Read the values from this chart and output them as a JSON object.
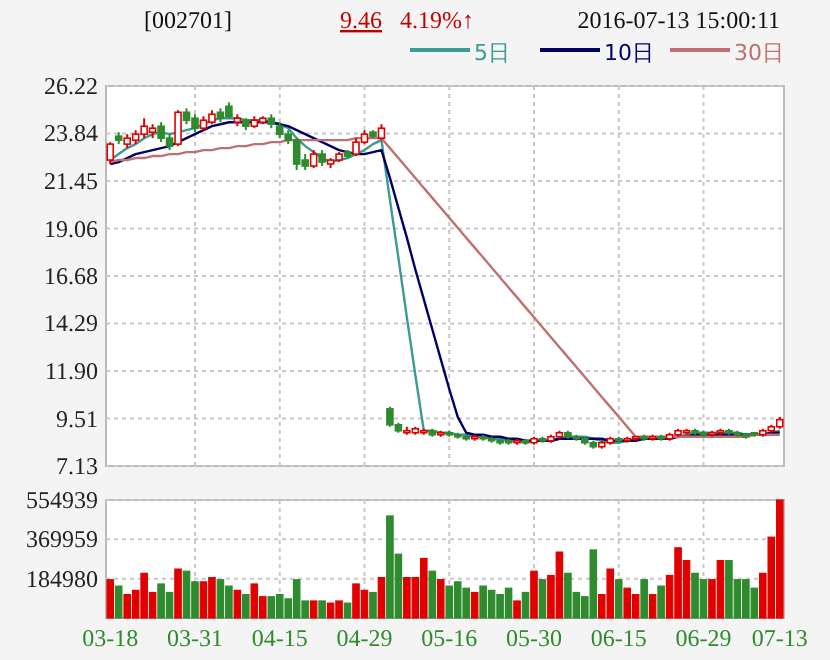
{
  "chart_data": [
    {
      "type": "candlestick",
      "annotations": [
        "[002701]",
        "9.46",
        "4.19%↑",
        "2016-07-13 15:00:11"
      ],
      "colors": [
        "#e00000",
        "#2e8b2e",
        "#e00000",
        "#e00000",
        "#e00000",
        "#e00000",
        "#2e8b2e",
        "#2e8b2e",
        "#e00000",
        "#2e8b2e",
        "#2e8b2e",
        "#e00000",
        "#e00000",
        "#2e8b2e",
        "#2e8b2e",
        "#e00000",
        "#2e8b2e",
        "#e00000",
        "#e00000",
        "#2e8b2e",
        "#2e8b2e",
        "#2e8b2e",
        "#2e8b2e",
        "#2e8b2e",
        "#e00000",
        "#2e8b2e",
        "#e00000",
        "#e00000",
        "#2e8b2e",
        "#e00000",
        "#e00000",
        "#2e8b2e",
        "#e00000",
        "#2e8b2e",
        "#2e8b2e",
        "#e00000",
        "#e00000",
        "#e00000",
        "#2e8b2e",
        "#e00000",
        "#2e8b2e",
        "#2e8b2e",
        "#2e8b2e",
        "#e00000",
        "#2e8b2e",
        "#2e8b2e",
        "#2e8b2e",
        "#2e8b2e",
        "#e00000",
        "#2e8b2e",
        "#e00000",
        "#2e8b2e",
        "#e00000",
        "#e00000",
        "#2e8b2e",
        "#2e8b2e",
        "#2e8b2e",
        "#2e8b2e",
        "#e00000",
        "#e00000",
        "#2e8b2e",
        "#e00000",
        "#e00000",
        "#2e8b2e",
        "#e00000",
        "#2e8b2e",
        "#e00000",
        "#e00000",
        "#e00000",
        "#2e8b2e",
        "#2e8b2e",
        "#e00000",
        "#e00000",
        "#2e8b2e",
        "#2e8b2e",
        "#2e8b2e",
        "#2e8b2e",
        "#e00000",
        "#e00000",
        "#e00000"
      ],
      "ohlc": [
        [
          22.5,
          23.4,
          22.3,
          23.3
        ],
        [
          23.7,
          23.9,
          23.3,
          23.5
        ],
        [
          23.3,
          23.8,
          23.1,
          23.6
        ],
        [
          23.5,
          24.0,
          23.3,
          23.8
        ],
        [
          23.8,
          24.6,
          23.6,
          24.2
        ],
        [
          23.9,
          24.3,
          23.6,
          24.1
        ],
        [
          24.2,
          24.4,
          23.4,
          23.6
        ],
        [
          23.6,
          23.8,
          23.0,
          23.2
        ],
        [
          23.3,
          25.0,
          23.2,
          24.9
        ],
        [
          24.9,
          25.1,
          24.3,
          24.5
        ],
        [
          24.6,
          24.8,
          23.9,
          24.1
        ],
        [
          24.1,
          24.7,
          24.0,
          24.5
        ],
        [
          24.4,
          25.0,
          24.3,
          24.8
        ],
        [
          24.9,
          25.1,
          24.4,
          24.6
        ],
        [
          25.2,
          25.4,
          24.6,
          24.7
        ],
        [
          24.4,
          24.8,
          24.2,
          24.6
        ],
        [
          24.5,
          24.6,
          24.0,
          24.2
        ],
        [
          24.2,
          24.7,
          24.1,
          24.5
        ],
        [
          24.4,
          24.7,
          24.3,
          24.6
        ],
        [
          24.6,
          24.8,
          24.1,
          24.3
        ],
        [
          24.2,
          24.4,
          23.6,
          23.8
        ],
        [
          23.8,
          24.0,
          23.3,
          23.5
        ],
        [
          23.5,
          23.6,
          22.0,
          22.3
        ],
        [
          22.5,
          22.8,
          22.0,
          22.2
        ],
        [
          22.2,
          23.0,
          22.1,
          22.8
        ],
        [
          22.8,
          23.0,
          22.2,
          22.4
        ],
        [
          22.3,
          22.6,
          22.1,
          22.5
        ],
        [
          22.5,
          22.9,
          22.4,
          22.8
        ],
        [
          22.9,
          23.0,
          22.6,
          22.7
        ],
        [
          22.8,
          23.6,
          22.7,
          23.4
        ],
        [
          23.4,
          24.0,
          23.3,
          23.8
        ],
        [
          23.9,
          24.0,
          23.6,
          23.7
        ],
        [
          23.6,
          24.3,
          23.5,
          24.1
        ],
        [
          10.0,
          10.1,
          9.1,
          9.2
        ],
        [
          9.2,
          9.3,
          8.8,
          8.9
        ],
        [
          8.8,
          9.1,
          8.7,
          8.9
        ],
        [
          8.8,
          9.1,
          8.7,
          9.0
        ],
        [
          8.8,
          9.0,
          8.7,
          8.9
        ],
        [
          8.9,
          9.0,
          8.6,
          8.7
        ],
        [
          8.7,
          8.9,
          8.6,
          8.8
        ],
        [
          8.8,
          8.9,
          8.6,
          8.7
        ],
        [
          8.7,
          8.8,
          8.5,
          8.6
        ],
        [
          8.6,
          8.7,
          8.4,
          8.5
        ],
        [
          8.5,
          8.7,
          8.4,
          8.6
        ],
        [
          8.6,
          8.7,
          8.4,
          8.5
        ],
        [
          8.5,
          8.6,
          8.3,
          8.4
        ],
        [
          8.4,
          8.5,
          8.2,
          8.3
        ],
        [
          8.4,
          8.5,
          8.2,
          8.3
        ],
        [
          8.3,
          8.5,
          8.2,
          8.4
        ],
        [
          8.4,
          8.5,
          8.2,
          8.3
        ],
        [
          8.3,
          8.6,
          8.2,
          8.5
        ],
        [
          8.5,
          8.6,
          8.3,
          8.4
        ],
        [
          8.4,
          8.7,
          8.3,
          8.6
        ],
        [
          8.6,
          8.9,
          8.5,
          8.8
        ],
        [
          8.8,
          8.9,
          8.5,
          8.6
        ],
        [
          8.6,
          8.7,
          8.4,
          8.5
        ],
        [
          8.5,
          8.6,
          8.2,
          8.3
        ],
        [
          8.3,
          8.4,
          8.0,
          8.1
        ],
        [
          8.1,
          8.4,
          8.0,
          8.3
        ],
        [
          8.3,
          8.6,
          8.2,
          8.5
        ],
        [
          8.5,
          8.6,
          8.3,
          8.4
        ],
        [
          8.4,
          8.6,
          8.3,
          8.5
        ],
        [
          8.5,
          8.6,
          8.4,
          8.6
        ],
        [
          8.6,
          8.7,
          8.4,
          8.5
        ],
        [
          8.5,
          8.7,
          8.4,
          8.6
        ],
        [
          8.6,
          8.7,
          8.4,
          8.5
        ],
        [
          8.5,
          8.8,
          8.4,
          8.7
        ],
        [
          8.7,
          9.0,
          8.6,
          8.9
        ],
        [
          8.8,
          9.0,
          8.7,
          8.9
        ],
        [
          8.9,
          9.0,
          8.7,
          8.8
        ],
        [
          8.8,
          8.9,
          8.6,
          8.7
        ],
        [
          8.7,
          8.9,
          8.6,
          8.8
        ],
        [
          8.8,
          9.0,
          8.7,
          8.9
        ],
        [
          8.9,
          9.0,
          8.7,
          8.8
        ],
        [
          8.8,
          8.9,
          8.6,
          8.7
        ],
        [
          8.7,
          8.8,
          8.5,
          8.6
        ],
        [
          8.8,
          8.8,
          8.6,
          8.7
        ],
        [
          8.7,
          9.0,
          8.6,
          8.9
        ],
        [
          8.9,
          9.2,
          8.8,
          9.1
        ],
        [
          9.1,
          9.6,
          9.0,
          9.46
        ]
      ],
      "series": [
        {
          "name": "5日",
          "type": "line",
          "color": "#3a9a94",
          "values": [
            22.5,
            22.8,
            23.1,
            23.3,
            23.6,
            23.8,
            23.9,
            23.8,
            23.9,
            24.0,
            24.1,
            24.3,
            24.5,
            24.6,
            24.6,
            24.6,
            24.5,
            24.5,
            24.5,
            24.4,
            24.3,
            24.1,
            23.6,
            23.2,
            22.9,
            22.6,
            22.4,
            22.5,
            22.6,
            22.8,
            23.0,
            23.3,
            23.5,
            20.5,
            17.6,
            14.6,
            11.7,
            8.9,
            8.9,
            8.8,
            8.8,
            8.7,
            8.7,
            8.6,
            8.6,
            8.5,
            8.5,
            8.4,
            8.4,
            8.3,
            8.4,
            8.4,
            8.4,
            8.5,
            8.6,
            8.6,
            8.6,
            8.5,
            8.4,
            8.3,
            8.3,
            8.4,
            8.5,
            8.5,
            8.5,
            8.5,
            8.6,
            8.6,
            8.7,
            8.8,
            8.8,
            8.8,
            8.8,
            8.8,
            8.8,
            8.7,
            8.7,
            8.7,
            8.8,
            8.9
          ]
        },
        {
          "name": "10日",
          "type": "line",
          "color": "#000066",
          "values": [
            22.3,
            22.4,
            22.6,
            22.8,
            22.9,
            23.0,
            23.1,
            23.2,
            23.4,
            23.6,
            23.8,
            24.0,
            24.2,
            24.3,
            24.4,
            24.4,
            24.4,
            24.4,
            24.4,
            24.4,
            24.3,
            24.2,
            24.0,
            23.8,
            23.6,
            23.4,
            23.2,
            23.0,
            22.9,
            22.8,
            22.8,
            22.9,
            23.0,
            21.6,
            20.1,
            18.6,
            17.0,
            15.5,
            14.0,
            12.5,
            11.0,
            9.6,
            8.8,
            8.7,
            8.7,
            8.6,
            8.6,
            8.5,
            8.5,
            8.4,
            8.4,
            8.4,
            8.4,
            8.5,
            8.5,
            8.5,
            8.5,
            8.5,
            8.5,
            8.4,
            8.4,
            8.4,
            8.4,
            8.5,
            8.5,
            8.5,
            8.5,
            8.6,
            8.6,
            8.7,
            8.7,
            8.7,
            8.7,
            8.7,
            8.7,
            8.7,
            8.7,
            8.7,
            8.8,
            8.8
          ]
        },
        {
          "name": "30日",
          "type": "line",
          "color": "#c07070",
          "values": [
            22.4,
            22.5,
            22.5,
            22.6,
            22.6,
            22.7,
            22.7,
            22.8,
            22.8,
            22.9,
            22.9,
            23.0,
            23.0,
            23.1,
            23.1,
            23.2,
            23.2,
            23.3,
            23.3,
            23.4,
            23.4,
            23.5,
            23.5,
            23.5,
            23.5,
            23.5,
            23.5,
            23.5,
            23.5,
            23.6,
            23.6,
            23.6,
            23.6,
            23.1,
            22.6,
            22.1,
            21.6,
            21.1,
            20.6,
            20.1,
            19.6,
            19.1,
            18.6,
            18.1,
            17.6,
            17.1,
            16.6,
            16.1,
            15.6,
            15.1,
            14.6,
            14.1,
            13.6,
            13.1,
            12.6,
            12.1,
            11.6,
            11.1,
            10.6,
            10.1,
            9.6,
            9.1,
            8.6,
            8.6,
            8.6,
            8.6,
            8.6,
            8.6,
            8.6,
            8.6,
            8.6,
            8.6,
            8.6,
            8.6,
            8.6,
            8.6,
            8.7,
            8.7,
            8.7,
            8.7
          ]
        }
      ],
      "ylim": [
        7.13,
        26.22
      ],
      "yticks": [
        26.22,
        23.84,
        21.45,
        19.06,
        16.68,
        14.29,
        {
          "value": 11.9,
          "label": "11.90"
        },
        9.51,
        7.13
      ],
      "grid": true,
      "legend": "top right",
      "tick_labels": "y"
    },
    {
      "type": "bar",
      "categories": [
        "03-18",
        null,
        null,
        null,
        null,
        null,
        null,
        null,
        null,
        null,
        "03-31",
        null,
        null,
        null,
        null,
        null,
        null,
        null,
        null,
        null,
        "04-15",
        null,
        null,
        null,
        null,
        null,
        null,
        null,
        null,
        null,
        "04-29",
        null,
        null,
        null,
        null,
        null,
        null,
        null,
        null,
        null,
        "05-16",
        null,
        null,
        null,
        null,
        null,
        null,
        null,
        null,
        null,
        "05-30",
        null,
        null,
        null,
        null,
        null,
        null,
        null,
        null,
        null,
        "06-15",
        null,
        null,
        null,
        null,
        null,
        null,
        null,
        null,
        null,
        "06-29",
        null,
        null,
        null,
        null,
        null,
        null,
        null,
        null,
        "07-13"
      ],
      "values": [
        180000,
        150000,
        110000,
        130000,
        210000,
        120000,
        160000,
        120000,
        230000,
        220000,
        170000,
        170000,
        190000,
        180000,
        150000,
        130000,
        110000,
        160000,
        100000,
        100000,
        110000,
        90000,
        180000,
        80000,
        80000,
        80000,
        70000,
        80000,
        70000,
        160000,
        130000,
        120000,
        190000,
        480000,
        300000,
        190000,
        190000,
        280000,
        220000,
        180000,
        150000,
        170000,
        140000,
        120000,
        150000,
        130000,
        110000,
        140000,
        80000,
        120000,
        220000,
        180000,
        200000,
        310000,
        210000,
        120000,
        100000,
        320000,
        110000,
        230000,
        180000,
        140000,
        110000,
        180000,
        110000,
        150000,
        200000,
        330000,
        270000,
        210000,
        180000,
        180000,
        270000,
        270000,
        180000,
        180000,
        140000,
        210000,
        380000,
        554939
      ],
      "colors": [
        "#e00000",
        "#2e8b2e",
        "#e00000",
        "#e00000",
        "#e00000",
        "#e00000",
        "#2e8b2e",
        "#2e8b2e",
        "#e00000",
        "#2e8b2e",
        "#2e8b2e",
        "#e00000",
        "#e00000",
        "#2e8b2e",
        "#2e8b2e",
        "#e00000",
        "#2e8b2e",
        "#e00000",
        "#e00000",
        "#2e8b2e",
        "#2e8b2e",
        "#2e8b2e",
        "#2e8b2e",
        "#2e8b2e",
        "#e00000",
        "#2e8b2e",
        "#e00000",
        "#e00000",
        "#2e8b2e",
        "#e00000",
        "#e00000",
        "#2e8b2e",
        "#e00000",
        "#2e8b2e",
        "#2e8b2e",
        "#e00000",
        "#e00000",
        "#e00000",
        "#2e8b2e",
        "#e00000",
        "#2e8b2e",
        "#2e8b2e",
        "#2e8b2e",
        "#e00000",
        "#2e8b2e",
        "#2e8b2e",
        "#2e8b2e",
        "#2e8b2e",
        "#e00000",
        "#2e8b2e",
        "#e00000",
        "#2e8b2e",
        "#e00000",
        "#e00000",
        "#2e8b2e",
        "#2e8b2e",
        "#2e8b2e",
        "#2e8b2e",
        "#e00000",
        "#e00000",
        "#2e8b2e",
        "#e00000",
        "#e00000",
        "#2e8b2e",
        "#e00000",
        "#2e8b2e",
        "#e00000",
        "#e00000",
        "#e00000",
        "#2e8b2e",
        "#2e8b2e",
        "#e00000",
        "#e00000",
        "#2e8b2e",
        "#2e8b2e",
        "#2e8b2e",
        "#2e8b2e",
        "#e00000",
        "#e00000",
        "#e00000"
      ],
      "ylim": [
        0,
        554939
      ],
      "yticks": [
        184980,
        369959,
        554939
      ],
      "grid": true
    }
  ]
}
